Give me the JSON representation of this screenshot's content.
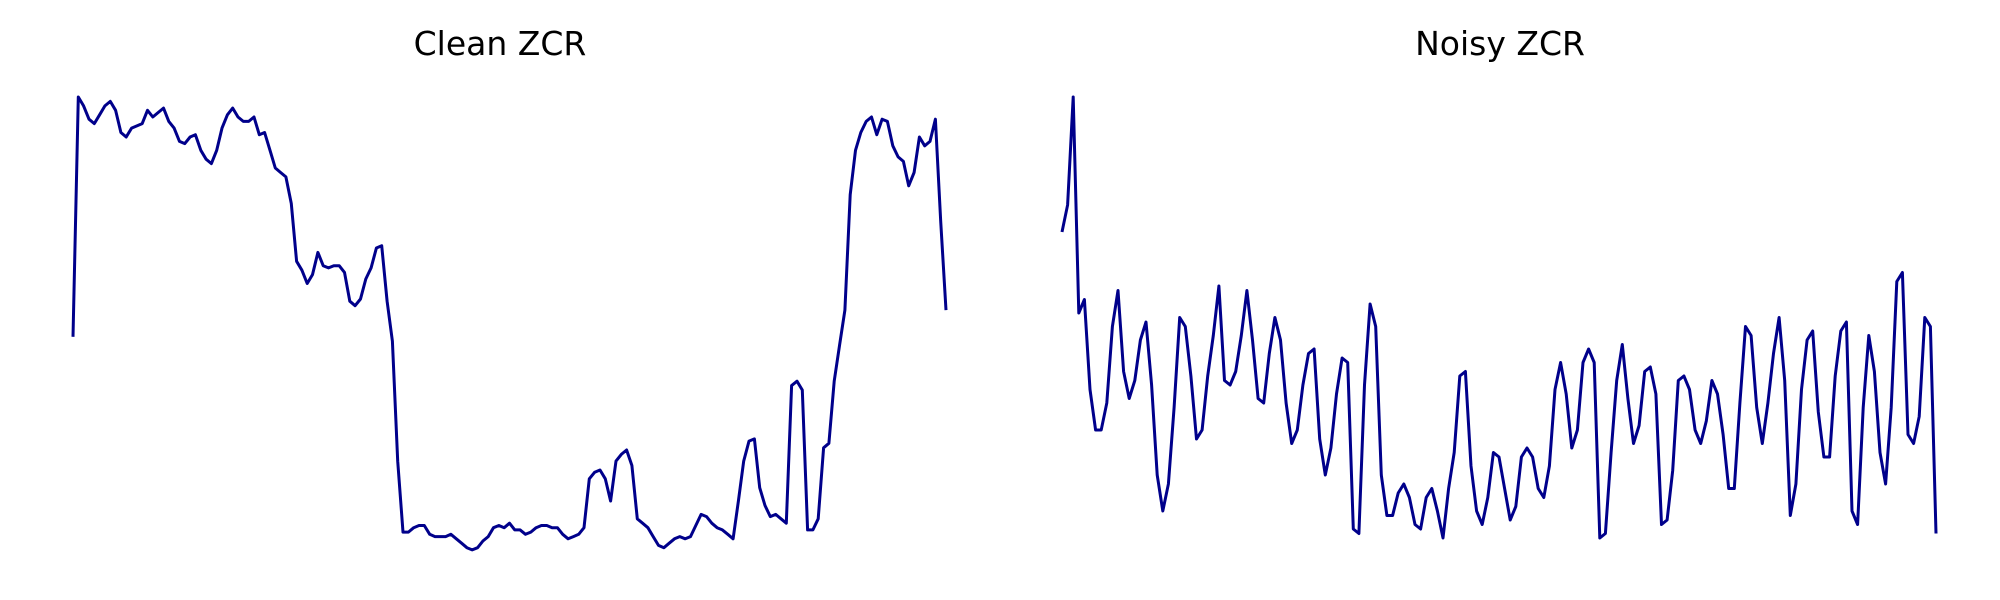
{
  "chart_data": [
    {
      "type": "line",
      "title": "Clean ZCR",
      "xlabel": "",
      "ylabel": "",
      "axes_visible": false,
      "grid": false,
      "ylim": [
        0,
        1
      ],
      "line_color": "#00008B",
      "series": [
        {
          "values": [
            0.46,
            1.0,
            0.98,
            0.95,
            0.94,
            0.96,
            0.98,
            0.99,
            0.97,
            0.92,
            0.91,
            0.93,
            0.935,
            0.94,
            0.97,
            0.955,
            0.965,
            0.975,
            0.945,
            0.93,
            0.9,
            0.895,
            0.91,
            0.915,
            0.88,
            0.86,
            0.85,
            0.88,
            0.93,
            0.96,
            0.975,
            0.955,
            0.945,
            0.945,
            0.955,
            0.915,
            0.92,
            0.88,
            0.84,
            0.83,
            0.82,
            0.76,
            0.63,
            0.61,
            0.58,
            0.6,
            0.65,
            0.62,
            0.615,
            0.62,
            0.62,
            0.605,
            0.54,
            0.53,
            0.545,
            0.59,
            0.615,
            0.66,
            0.665,
            0.54,
            0.45,
            0.18,
            0.02,
            0.02,
            0.03,
            0.035,
            0.035,
            0.015,
            0.01,
            0.01,
            0.01,
            0.015,
            0.005,
            -0.005,
            -0.015,
            -0.02,
            -0.015,
            0.0,
            0.01,
            0.03,
            0.035,
            0.03,
            0.04,
            0.025,
            0.025,
            0.015,
            0.02,
            0.03,
            0.035,
            0.035,
            0.03,
            0.03,
            0.015,
            0.005,
            0.01,
            0.015,
            0.03,
            0.14,
            0.155,
            0.16,
            0.14,
            0.09,
            0.18,
            0.195,
            0.205,
            0.17,
            0.05,
            0.04,
            0.03,
            0.01,
            -0.01,
            -0.015,
            -0.005,
            0.005,
            0.01,
            0.005,
            0.01,
            0.035,
            0.06,
            0.055,
            0.04,
            0.03,
            0.025,
            0.015,
            0.005,
            0.09,
            0.18,
            0.225,
            0.23,
            0.12,
            0.08,
            0.055,
            0.06,
            0.05,
            0.04,
            0.35,
            0.36,
            0.34,
            0.025,
            0.025,
            0.05,
            0.21,
            0.22,
            0.36,
            0.44,
            0.52,
            0.78,
            0.88,
            0.92,
            0.945,
            0.955,
            0.915,
            0.95,
            0.945,
            0.89,
            0.865,
            0.855,
            0.8,
            0.83,
            0.91,
            0.89,
            0.9,
            0.95,
            0.72,
            0.52
          ]
        }
      ]
    },
    {
      "type": "line",
      "title": "Noisy ZCR",
      "xlabel": "",
      "ylabel": "",
      "axes_visible": false,
      "grid": false,
      "ylim": [
        0,
        1
      ],
      "line_color": "#00008B",
      "series": [
        {
          "values": [
            0.7,
            0.76,
            1.0,
            0.52,
            0.55,
            0.35,
            0.26,
            0.26,
            0.32,
            0.49,
            0.57,
            0.39,
            0.33,
            0.37,
            0.46,
            0.5,
            0.36,
            0.16,
            0.08,
            0.14,
            0.31,
            0.51,
            0.49,
            0.38,
            0.24,
            0.26,
            0.38,
            0.47,
            0.58,
            0.37,
            0.36,
            0.39,
            0.47,
            0.57,
            0.46,
            0.33,
            0.32,
            0.43,
            0.51,
            0.46,
            0.32,
            0.23,
            0.26,
            0.36,
            0.43,
            0.44,
            0.24,
            0.16,
            0.22,
            0.34,
            0.42,
            0.41,
            0.04,
            0.03,
            0.36,
            0.54,
            0.49,
            0.16,
            0.07,
            0.07,
            0.12,
            0.14,
            0.11,
            0.05,
            0.04,
            0.11,
            0.13,
            0.08,
            0.02,
            0.13,
            0.21,
            0.38,
            0.39,
            0.18,
            0.08,
            0.05,
            0.11,
            0.21,
            0.2,
            0.13,
            0.06,
            0.09,
            0.2,
            0.22,
            0.2,
            0.13,
            0.11,
            0.18,
            0.35,
            0.41,
            0.34,
            0.22,
            0.26,
            0.41,
            0.44,
            0.41,
            0.02,
            0.03,
            0.21,
            0.37,
            0.45,
            0.33,
            0.23,
            0.27,
            0.39,
            0.4,
            0.34,
            0.05,
            0.06,
            0.17,
            0.37,
            0.38,
            0.35,
            0.26,
            0.23,
            0.28,
            0.37,
            0.34,
            0.25,
            0.13,
            0.13,
            0.32,
            0.49,
            0.47,
            0.31,
            0.23,
            0.32,
            0.43,
            0.51,
            0.37,
            0.07,
            0.14,
            0.35,
            0.46,
            0.48,
            0.3,
            0.2,
            0.2,
            0.38,
            0.48,
            0.5,
            0.08,
            0.05,
            0.31,
            0.47,
            0.39,
            0.21,
            0.14,
            0.31,
            0.59,
            0.61,
            0.25,
            0.23,
            0.29,
            0.51,
            0.49,
            0.03
          ]
        }
      ]
    }
  ]
}
